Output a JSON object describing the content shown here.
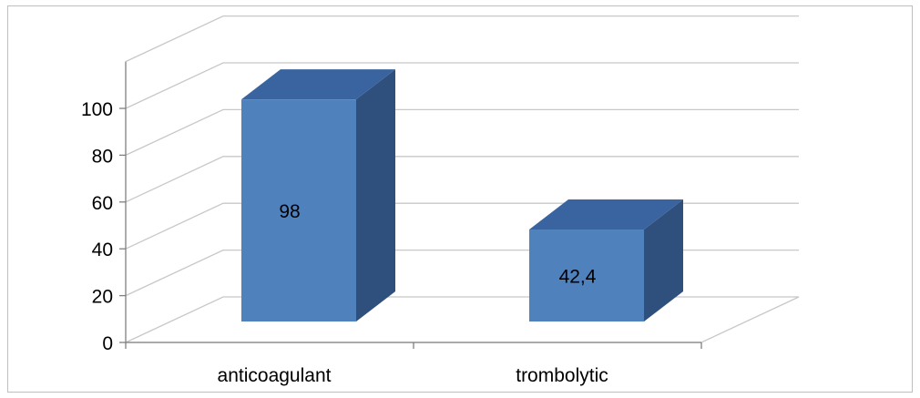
{
  "chart_data": {
    "type": "bar",
    "style": "3d-column",
    "categories": [
      "anticoagulant",
      "trombolytic"
    ],
    "values": [
      98,
      42.4
    ],
    "data_labels": [
      "98",
      "42,4"
    ],
    "ylim": [
      0,
      100
    ],
    "yticks": [
      0,
      20,
      40,
      60,
      80,
      100
    ],
    "ytick_labels": [
      "0",
      "20",
      "40",
      "60",
      "80",
      "100"
    ],
    "grid": true,
    "legend": false,
    "title": "",
    "xlabel": "",
    "ylabel": "",
    "colors": {
      "front": "#4f81bd",
      "top": "#3a64a0",
      "side": "#2f4f7d",
      "grid": "#c8c8c8",
      "axis": "#7f7f7f"
    }
  }
}
